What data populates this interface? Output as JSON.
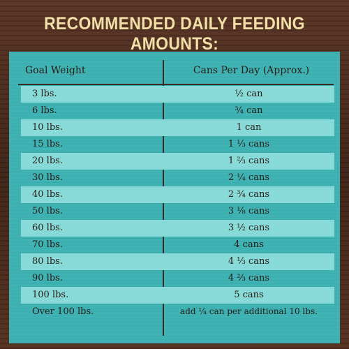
{
  "title": "RECOMMENDED DAILY FEEDING AMOUNTS:",
  "table": {
    "headers": [
      "Goal Weight",
      "Cans Per Day (Approx.)"
    ],
    "rows": [
      {
        "weight": "3 lbs.",
        "cans": "½ can"
      },
      {
        "weight": "6 lbs.",
        "cans": "¾ can"
      },
      {
        "weight": "10 lbs.",
        "cans": "1 can"
      },
      {
        "weight": "15 lbs.",
        "cans": "1 ⅓ cans"
      },
      {
        "weight": "20 lbs.",
        "cans": "1 ⅔ cans"
      },
      {
        "weight": "30 lbs.",
        "cans": "2 ¼ cans"
      },
      {
        "weight": "40 lbs.",
        "cans": "2 ¾ cans"
      },
      {
        "weight": "50 lbs.",
        "cans": "3 ⅛ cans"
      },
      {
        "weight": "60 lbs.",
        "cans": "3 ½ cans"
      },
      {
        "weight": "70 lbs.",
        "cans": "4 cans"
      },
      {
        "weight": "80 lbs.",
        "cans": "4 ⅓ cans"
      },
      {
        "weight": "90 lbs.",
        "cans": "4 ⅔ cans"
      },
      {
        "weight": "100 lbs.",
        "cans": "5 cans"
      },
      {
        "weight": "Over 100 lbs.",
        "cans": "add ¼ can per additional 10 lbs."
      }
    ]
  },
  "colors": {
    "title_text": "#f1dfa8",
    "panel": "#3fb2b4",
    "stripe": "#88dad8",
    "wood": "#4a2a1c",
    "text": "#2a1c14"
  }
}
